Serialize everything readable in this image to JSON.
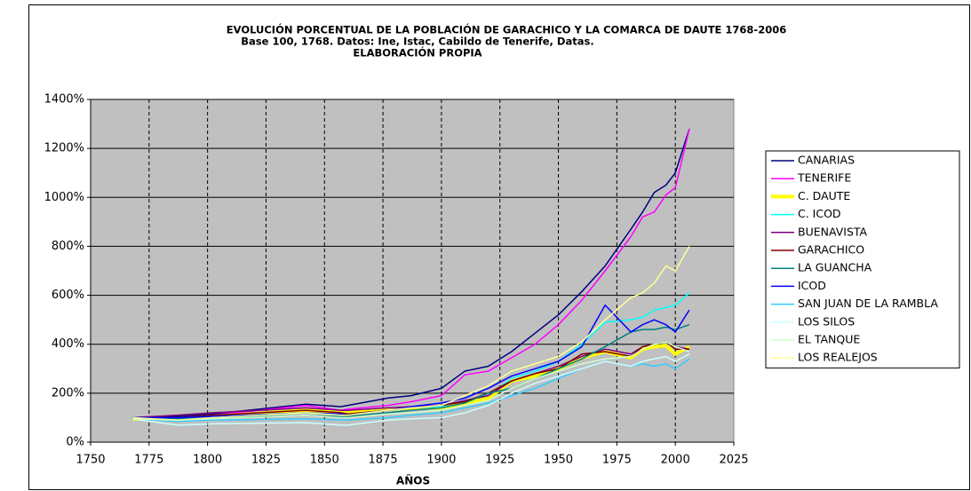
{
  "chart_data": {
    "type": "line",
    "title": [
      "EVOLUCIÓN PORCENTUAL DE LA POBLACIÓN DE GARACHICO Y LA COMARCA DE DAUTE 1768-2006",
      "Base 100, 1768. Datos: Ine, Istac, Cabildo de Tenerife, Datas.",
      "ELABORACIÓN PROPIA"
    ],
    "x_label": "AÑOS",
    "x": [
      1768,
      1787,
      1802,
      1842,
      1857,
      1860,
      1877,
      1887,
      1900,
      1910,
      1920,
      1930,
      1940,
      1950,
      1960,
      1970,
      1981,
      1986,
      1991,
      1996,
      2000,
      2006
    ],
    "xlim": [
      1750,
      2025
    ],
    "xticks": [
      1750,
      1775,
      1800,
      1825,
      1850,
      1875,
      1900,
      1925,
      1950,
      1975,
      2000,
      2025
    ],
    "ylim": [
      0,
      1400
    ],
    "yticks": [
      {
        "value": 0,
        "label": "0%"
      },
      {
        "value": 200,
        "label": "200%"
      },
      {
        "value": 400,
        "label": "400%"
      },
      {
        "value": 600,
        "label": "600%"
      },
      {
        "value": 800,
        "label": "800%"
      },
      {
        "value": 1000,
        "label": "1000%"
      },
      {
        "value": 1200,
        "label": "1200%"
      },
      {
        "value": 1400,
        "label": "1400%"
      }
    ],
    "grid": true,
    "plot_background": "#c0c0c0",
    "legend": "right",
    "series": [
      {
        "name": "CANARIAS",
        "color": "#000080",
        "width": 1.5,
        "values": [
          100,
          105,
          115,
          155,
          145,
          150,
          180,
          190,
          220,
          290,
          310,
          370,
          445,
          520,
          615,
          720,
          870,
          940,
          1020,
          1050,
          1100,
          1280
        ]
      },
      {
        "name": "TENERIFE",
        "color": "#ff00ff",
        "width": 1.5,
        "values": [
          100,
          100,
          110,
          150,
          130,
          135,
          150,
          165,
          190,
          275,
          290,
          345,
          400,
          480,
          580,
          700,
          840,
          920,
          940,
          1010,
          1040,
          1280
        ]
      },
      {
        "name": "C. DAUTE",
        "color": "#ffff00",
        "width": 4,
        "values": [
          95,
          95,
          105,
          130,
          120,
          120,
          135,
          140,
          140,
          160,
          180,
          250,
          270,
          300,
          345,
          370,
          345,
          380,
          390,
          395,
          360,
          390
        ]
      },
      {
        "name": "C. ICOD",
        "color": "#00ffff",
        "width": 1.5,
        "values": [
          95,
          95,
          105,
          120,
          115,
          115,
          130,
          140,
          145,
          170,
          190,
          260,
          290,
          330,
          400,
          490,
          500,
          510,
          540,
          550,
          560,
          610
        ]
      },
      {
        "name": "BUENAVISTA",
        "color": "#800080",
        "width": 1.5,
        "values": [
          100,
          110,
          120,
          140,
          130,
          130,
          140,
          145,
          150,
          170,
          190,
          250,
          280,
          310,
          350,
          380,
          360,
          390,
          400,
          410,
          390,
          380
        ]
      },
      {
        "name": "GARACHICO",
        "color": "#800000",
        "width": 1.5,
        "values": [
          100,
          100,
          110,
          130,
          120,
          115,
          130,
          140,
          150,
          165,
          200,
          250,
          280,
          300,
          360,
          370,
          350,
          390,
          400,
          410,
          380,
          380
        ]
      },
      {
        "name": "LA GUANCHA",
        "color": "#008080",
        "width": 1.5,
        "values": [
          100,
          95,
          100,
          110,
          105,
          105,
          120,
          130,
          140,
          160,
          200,
          220,
          260,
          300,
          340,
          390,
          450,
          460,
          460,
          470,
          460,
          480
        ]
      },
      {
        "name": "ICOD",
        "color": "#0000ff",
        "width": 1.5,
        "values": [
          100,
          100,
          105,
          120,
          115,
          110,
          130,
          145,
          160,
          180,
          220,
          270,
          300,
          330,
          390,
          560,
          450,
          480,
          500,
          480,
          450,
          540
        ]
      },
      {
        "name": "SAN JUAN DE LA RAMBLA",
        "color": "#33ccff",
        "width": 1.5,
        "values": [
          95,
          85,
          90,
          95,
          90,
          90,
          100,
          110,
          120,
          140,
          160,
          190,
          220,
          260,
          300,
          330,
          310,
          320,
          310,
          320,
          300,
          340
        ]
      },
      {
        "name": "LOS SILOS",
        "color": "#ccffff",
        "width": 1.5,
        "values": [
          95,
          70,
          75,
          80,
          70,
          70,
          90,
          95,
          100,
          120,
          150,
          200,
          240,
          270,
          300,
          330,
          310,
          330,
          340,
          350,
          330,
          360
        ]
      },
      {
        "name": "EL TANQUE",
        "color": "#ccffcc",
        "width": 1.5,
        "values": [
          95,
          90,
          95,
          110,
          100,
          100,
          115,
          120,
          130,
          150,
          170,
          220,
          260,
          290,
          320,
          340,
          350,
          380,
          400,
          410,
          390,
          370
        ]
      },
      {
        "name": "LOS REALEJOS",
        "color": "#ffff99",
        "width": 1.5,
        "values": [
          100,
          90,
          100,
          120,
          110,
          110,
          130,
          140,
          150,
          190,
          230,
          290,
          320,
          350,
          410,
          500,
          590,
          610,
          650,
          720,
          700,
          800
        ]
      }
    ]
  }
}
